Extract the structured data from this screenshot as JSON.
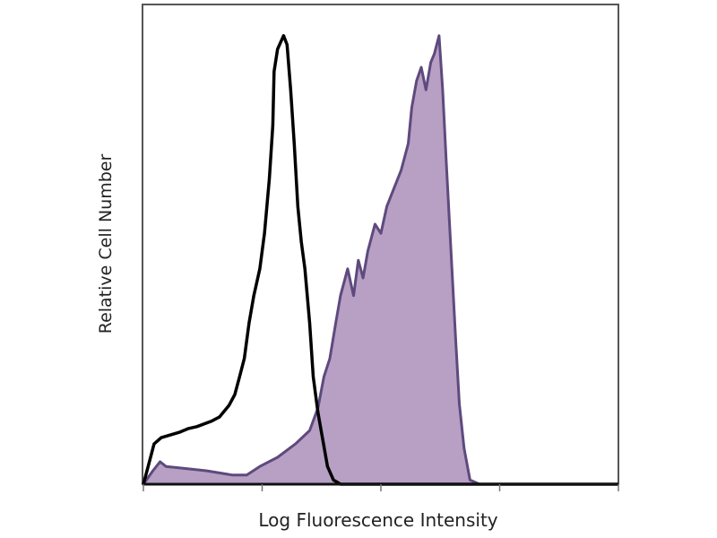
{
  "chart_data": {
    "type": "area",
    "title": "",
    "xlabel": "Log Fluorescence Intensity",
    "ylabel": "Relative Cell Number",
    "x_scale": "log (decades)",
    "xlim": [
      0,
      4
    ],
    "ylim": [
      0,
      100
    ],
    "x_ticks": [
      0,
      1,
      2,
      3,
      4
    ],
    "grid": false,
    "legend": "none",
    "series": [
      {
        "style": "line",
        "color": "#000000",
        "x": [
          0,
          0.04,
          0.09,
          0.15,
          0.23,
          0.3,
          0.38,
          0.45,
          0.57,
          0.64,
          0.72,
          0.77,
          0.81,
          0.85,
          0.89,
          0.93,
          0.98,
          1.02,
          1.06,
          1.09,
          1.1,
          1.13,
          1.18,
          1.21,
          1.24,
          1.27,
          1.3,
          1.33,
          1.36,
          1.4,
          1.43,
          1.47,
          1.51,
          1.55,
          1.6,
          1.66,
          4
        ],
        "y": [
          0,
          3.7,
          8.4,
          9.7,
          10.3,
          10.8,
          11.6,
          12.0,
          13.1,
          14.0,
          16.4,
          18.7,
          22.4,
          26.2,
          33.6,
          39.3,
          44.9,
          52.3,
          63.6,
          74.8,
          86.0,
          90.7,
          93.5,
          91.6,
          82.2,
          71.0,
          57.9,
          50.5,
          44.9,
          33.6,
          22.4,
          14.9,
          9.3,
          3.7,
          0.9,
          0,
          0
        ]
      },
      {
        "style": "filled",
        "color": "#5e4a7e",
        "fill": "#b7a0c4",
        "x": [
          0,
          0.08,
          0.14,
          0.19,
          0.3,
          0.53,
          0.75,
          0.87,
          0.98,
          1.13,
          1.28,
          1.4,
          1.47,
          1.52,
          1.57,
          1.62,
          1.66,
          1.72,
          1.77,
          1.81,
          1.85,
          1.89,
          1.95,
          2.0,
          2.05,
          2.11,
          2.17,
          2.23,
          2.26,
          2.3,
          2.34,
          2.38,
          2.42,
          2.45,
          2.49,
          2.52,
          2.55,
          2.59,
          2.63,
          2.66,
          2.7,
          2.75,
          2.83,
          4
        ],
        "y": [
          0,
          2.8,
          4.7,
          3.7,
          3.4,
          2.8,
          1.9,
          1.9,
          3.7,
          5.6,
          8.4,
          11.2,
          15.9,
          22.4,
          26.2,
          33.6,
          39.3,
          44.9,
          39.3,
          46.7,
          43.0,
          48.6,
          54.2,
          52.3,
          57.9,
          61.7,
          65.4,
          71.0,
          78.5,
          84.1,
          86.9,
          82.2,
          87.9,
          89.7,
          93.5,
          82.2,
          67.3,
          48.6,
          29.9,
          16.8,
          7.5,
          0.9,
          0,
          0
        ]
      }
    ]
  }
}
